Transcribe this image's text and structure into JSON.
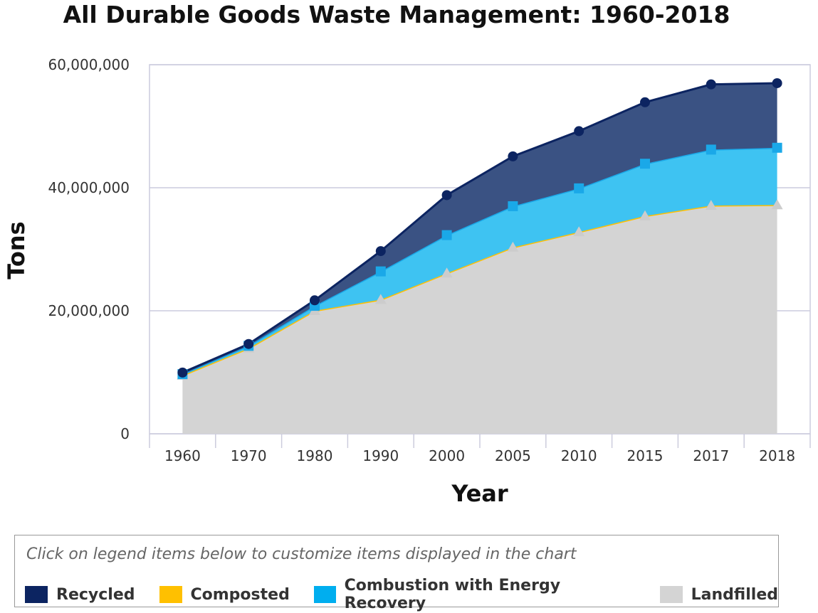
{
  "chart_data": {
    "type": "area",
    "stacked": true,
    "title": "All Durable Goods Waste Management: 1960-2018",
    "xlabel": "Year",
    "ylabel": "Tons",
    "ylim": [
      0,
      60000000
    ],
    "yticks": [
      "0",
      "20,000,000",
      "40,000,000",
      "60,000,000"
    ],
    "ytick_values": [
      0,
      20000000,
      40000000,
      60000000
    ],
    "grid": true,
    "legend_position": "bottom",
    "categories": [
      "1960",
      "1970",
      "1980",
      "1990",
      "2000",
      "2005",
      "2010",
      "2015",
      "2017",
      "2018"
    ],
    "series": [
      {
        "name": "Landfilled",
        "color": "#d4d4d4",
        "line": "#cccccc",
        "marker": "triangle",
        "values": [
          9500000,
          13900000,
          20000000,
          21800000,
          26100000,
          30300000,
          32800000,
          35400000,
          37100000,
          37200000
        ]
      },
      {
        "name": "Composted",
        "color": "#ffc000",
        "line": "#ffc000",
        "marker": "diamond",
        "values": [
          0,
          0,
          0,
          0,
          0,
          0,
          0,
          0,
          0,
          0
        ]
      },
      {
        "name": "Combustion with Energy Recovery",
        "color": "#3ec3f2",
        "line": "#1aa8e8",
        "marker": "square",
        "values": [
          200000,
          400000,
          800000,
          4600000,
          6200000,
          6700000,
          7100000,
          8500000,
          9100000,
          9300000
        ]
      },
      {
        "name": "Recycled",
        "color": "#3a5283",
        "line": "#0c2461",
        "marker": "circle",
        "values": [
          250000,
          300000,
          900000,
          3300000,
          6500000,
          8100000,
          9300000,
          10000000,
          10600000,
          10500000
        ]
      }
    ]
  },
  "legend": {
    "hint": "Click on legend items below to customize items displayed in the chart",
    "items": [
      {
        "label": "Recycled",
        "color": "#0c2461"
      },
      {
        "label": "Composted",
        "color": "#ffc000"
      },
      {
        "label": "Combustion with Energy Recovery",
        "color": "#00aeef"
      },
      {
        "label": "Landfilled",
        "color": "#d4d4d4"
      }
    ]
  }
}
